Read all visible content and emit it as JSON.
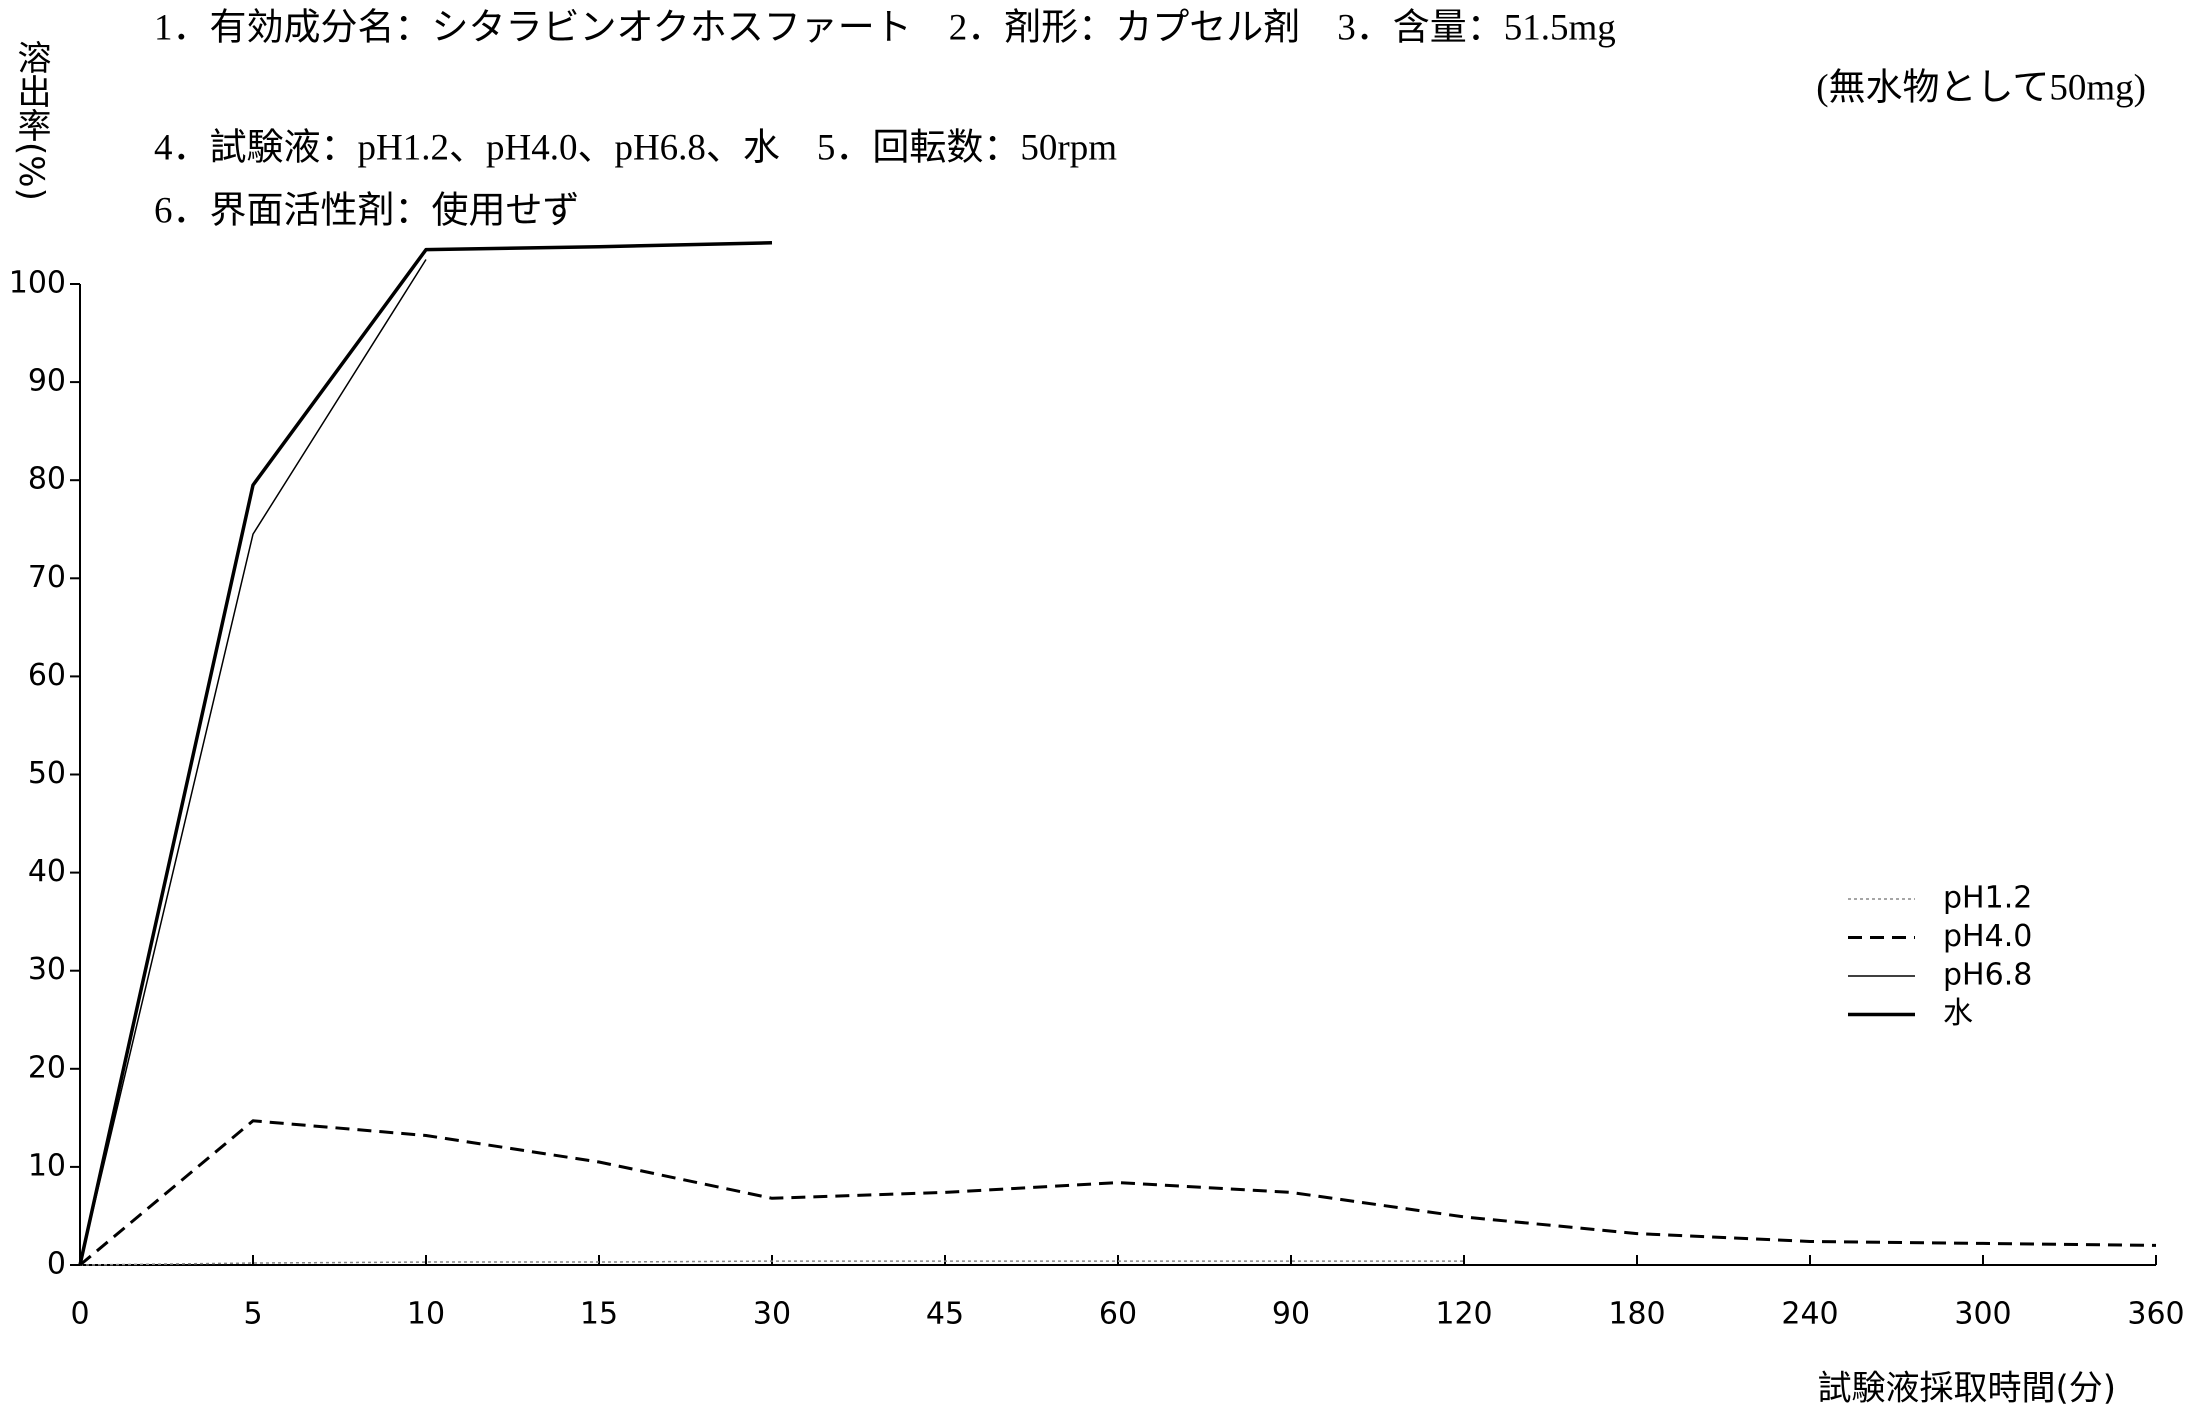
{
  "chart_data": {
    "type": "line",
    "annotations": [
      "1．有効成分名：シタラビンオクホスファート　2．剤形：カプセル剤　3．含量：51.5mg",
      "(無水物として50mg)",
      "4．試験液：pH1.2、pH4.0、pH6.8、水　5．回転数：50rpm",
      "6．界面活性剤：使用せず"
    ],
    "y_label": "溶出率(%)",
    "x_label": "試験液採取時間(分)",
    "categories": [
      "0",
      "5",
      "10",
      "15",
      "30",
      "45",
      "60",
      "90",
      "120",
      "180",
      "240",
      "300",
      "360"
    ],
    "series": [
      {
        "name": "pH1.2",
        "color": "#888888",
        "style": "dotted",
        "values": [
          0,
          0.2,
          0.3,
          0.3,
          0.4,
          0.4,
          0.4,
          0.4,
          0.4,
          null,
          null,
          null,
          null
        ]
      },
      {
        "name": "pH4.0",
        "color": "#000000",
        "style": "dashed",
        "values": [
          0,
          14.7,
          13.2,
          10.5,
          6.8,
          7.4,
          8.4,
          7.4,
          4.9,
          3.2,
          2.4,
          2.2,
          2.0
        ]
      },
      {
        "name": "pH6.8",
        "color": "#000000",
        "style": "thin",
        "values": [
          0,
          74.5,
          102.5,
          null,
          null,
          null,
          null,
          null,
          null,
          null,
          null,
          null,
          null
        ]
      },
      {
        "name": "水",
        "color": "#000000",
        "style": "thick",
        "values": [
          0,
          79.5,
          103.5,
          103.8,
          104.2,
          null,
          null,
          null,
          null,
          null,
          null,
          null,
          null
        ]
      }
    ],
    "ylim": [
      0,
      100
    ],
    "yticks": [
      0,
      10,
      20,
      30,
      40,
      50,
      60,
      70,
      80,
      90,
      100
    ],
    "grid": false
  }
}
